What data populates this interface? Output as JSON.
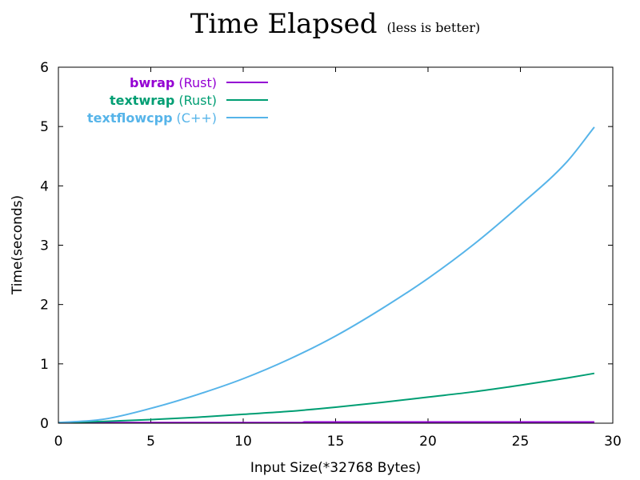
{
  "chart_data": {
    "type": "line",
    "title": "Time Elapsed",
    "subtitle": "(less is better)",
    "xlabel": "Input Size(*32768 Bytes)",
    "ylabel": "Time(seconds)",
    "xlim": [
      0,
      30
    ],
    "ylim": [
      0,
      6
    ],
    "xticks": [
      "0",
      "5",
      "10",
      "15",
      "20",
      "25",
      "30"
    ],
    "yticks": [
      "0",
      "1",
      "2",
      "3",
      "4",
      "5",
      "6"
    ],
    "grid": false,
    "legend_position": "top-left",
    "series": [
      {
        "name": "bwrap",
        "lang": "(Rust)",
        "color": "#9400d3",
        "x": [
          0,
          5,
          10,
          13.2,
          13.3,
          15,
          20,
          25,
          29
        ],
        "y": [
          0.01,
          0.01,
          0.01,
          0.01,
          0.02,
          0.02,
          0.02,
          0.02,
          0.02
        ]
      },
      {
        "name": "textwrap",
        "lang": "(Rust)",
        "color": "#009e73",
        "x": [
          0,
          2.5,
          5,
          7.5,
          10,
          12.5,
          15,
          17.5,
          20,
          22.5,
          25,
          27.5,
          29
        ],
        "y": [
          0.01,
          0.03,
          0.06,
          0.1,
          0.15,
          0.2,
          0.27,
          0.35,
          0.44,
          0.53,
          0.64,
          0.76,
          0.84
        ]
      },
      {
        "name": "textflowcpp",
        "lang": "(C++)",
        "color": "#56b4e9",
        "x": [
          0,
          2.5,
          5,
          7.5,
          10,
          12.5,
          15,
          17.5,
          20,
          22.5,
          25,
          27.5,
          29
        ],
        "y": [
          0.01,
          0.07,
          0.25,
          0.48,
          0.75,
          1.08,
          1.47,
          1.93,
          2.44,
          3.02,
          3.68,
          4.4,
          4.99
        ]
      }
    ]
  }
}
